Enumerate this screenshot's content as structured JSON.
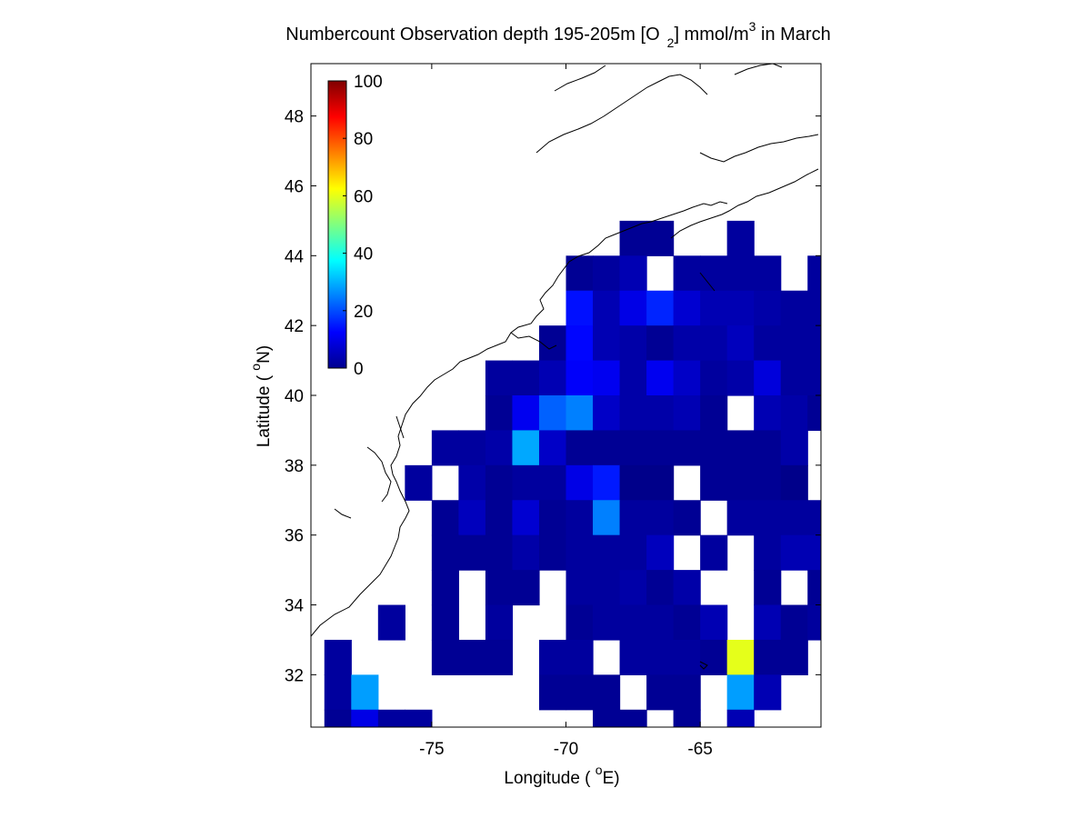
{
  "chart_data": {
    "type": "heatmap",
    "title": {
      "pre": "Numbercount Observation depth 195-205m [O",
      "sub": "2",
      "mid": "] mmol/m",
      "sup": "3",
      "post": " in March"
    },
    "xlabel": {
      "pre": "Longitude ( ",
      "sup": "o",
      "post": "E)"
    },
    "ylabel": {
      "pre": "Latitude ( ",
      "sup": "o",
      "post": "N)"
    },
    "xlim": [
      -79.5,
      -60.5
    ],
    "ylim": [
      30.5,
      49.5
    ],
    "xticks": [
      -75,
      -70,
      -65
    ],
    "xtick_labels": [
      "-75",
      "-70",
      "-65"
    ],
    "yticks": [
      32,
      34,
      36,
      38,
      40,
      42,
      44,
      46,
      48
    ],
    "ytick_labels": [
      "32",
      "34",
      "36",
      "38",
      "40",
      "42",
      "44",
      "46",
      "48"
    ],
    "colorbar": {
      "colormap": "jet",
      "range": [
        0,
        100
      ],
      "ticks": [
        0,
        20,
        40,
        60,
        80,
        100
      ],
      "tick_labels": [
        "0",
        "20",
        "40",
        "60",
        "80",
        "100"
      ],
      "location": "inside top-left"
    },
    "grid": false,
    "cell_size_deg": 1,
    "rows_lat_start": [
      44,
      43,
      42,
      41,
      40,
      39,
      38,
      37,
      36,
      35,
      34,
      33,
      32,
      31,
      30.5
    ],
    "col_lon_start": [
      -80,
      -79,
      -78,
      -77,
      -76,
      -75,
      -74,
      -73,
      -72,
      -71,
      -70,
      -69,
      -68,
      -67,
      -66,
      -65,
      -64,
      -63,
      -62,
      -61
    ],
    "cells": [
      {
        "lat": 44,
        "values": [
          null,
          null,
          null,
          null,
          null,
          null,
          null,
          null,
          null,
          null,
          null,
          null,
          2,
          2,
          null,
          null,
          3,
          null,
          null,
          null
        ]
      },
      {
        "lat": 43,
        "values": [
          null,
          null,
          null,
          null,
          null,
          null,
          null,
          null,
          null,
          null,
          2,
          3,
          5,
          null,
          3,
          3,
          3,
          3,
          null,
          3
        ]
      },
      {
        "lat": 42,
        "values": [
          null,
          null,
          null,
          null,
          null,
          null,
          null,
          null,
          null,
          null,
          14,
          5,
          10,
          16,
          8,
          5,
          5,
          4,
          3,
          3
        ]
      },
      {
        "lat": 41,
        "values": [
          null,
          null,
          null,
          null,
          null,
          null,
          null,
          null,
          null,
          2,
          13,
          5,
          4,
          2,
          4,
          4,
          6,
          3,
          3,
          3
        ]
      },
      {
        "lat": 40,
        "values": [
          null,
          null,
          null,
          null,
          null,
          null,
          null,
          3,
          3,
          5,
          12,
          11,
          4,
          11,
          7,
          3,
          4,
          9,
          3,
          3
        ]
      },
      {
        "lat": 39,
        "values": [
          null,
          null,
          null,
          null,
          null,
          null,
          null,
          2,
          11,
          22,
          25,
          7,
          4,
          4,
          5,
          2,
          null,
          5,
          4,
          2
        ]
      },
      {
        "lat": 38,
        "values": [
          null,
          null,
          null,
          null,
          null,
          3,
          3,
          4,
          29,
          7,
          2,
          2,
          2,
          2,
          2,
          2,
          2,
          2,
          4,
          null
        ]
      },
      {
        "lat": 37,
        "values": [
          null,
          null,
          null,
          null,
          3,
          null,
          4,
          2,
          3,
          3,
          10,
          15,
          1,
          1,
          null,
          2,
          2,
          2,
          1,
          null
        ]
      },
      {
        "lat": 36,
        "values": [
          null,
          null,
          null,
          null,
          null,
          2,
          6,
          2,
          8,
          2,
          3,
          25,
          3,
          3,
          2,
          null,
          3,
          3,
          3,
          3
        ]
      },
      {
        "lat": 35,
        "values": [
          null,
          null,
          null,
          null,
          null,
          2,
          2,
          2,
          4,
          2,
          3,
          3,
          3,
          6,
          null,
          3,
          null,
          3,
          5,
          5
        ]
      },
      {
        "lat": 34,
        "values": [
          null,
          null,
          null,
          null,
          null,
          2,
          null,
          2,
          2,
          null,
          3,
          3,
          4,
          2,
          4,
          null,
          null,
          2,
          null,
          2
        ]
      },
      {
        "lat": 33,
        "values": [
          null,
          null,
          null,
          3,
          null,
          2,
          null,
          3,
          null,
          null,
          2,
          3,
          3,
          3,
          2,
          5,
          null,
          5,
          2,
          3
        ]
      },
      {
        "lat": 32,
        "values": [
          null,
          3,
          null,
          null,
          null,
          2,
          2,
          2,
          null,
          3,
          3,
          null,
          3,
          3,
          3,
          2,
          60,
          2,
          2,
          null
        ]
      },
      {
        "lat": 31,
        "values": [
          null,
          3,
          28,
          null,
          null,
          null,
          null,
          null,
          null,
          2,
          2,
          2,
          null,
          2,
          2,
          null,
          28,
          5,
          null,
          null
        ]
      },
      {
        "lat": 30.5,
        "values": [
          null,
          2,
          10,
          3,
          3,
          null,
          null,
          null,
          null,
          null,
          null,
          2,
          2,
          null,
          2,
          null,
          5,
          null,
          null,
          null
        ]
      }
    ]
  }
}
